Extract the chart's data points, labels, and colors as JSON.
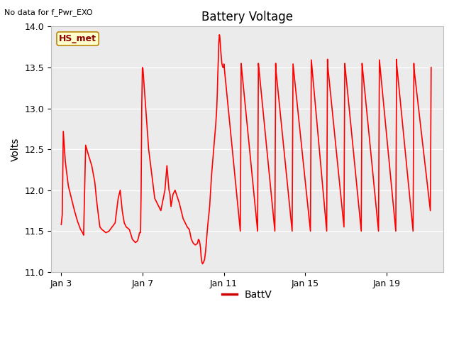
{
  "title": "Battery Voltage",
  "subtitle": "No data for f_Pwr_EXO",
  "ylabel": "Volts",
  "ylim": [
    11.0,
    14.0
  ],
  "yticks": [
    11.0,
    11.5,
    12.0,
    12.5,
    13.0,
    13.5,
    14.0
  ],
  "xtick_labels": [
    "Jan 3",
    "Jan 7",
    "Jan 11",
    "Jan 15",
    "Jan 19"
  ],
  "xtick_positions": [
    0,
    4,
    8,
    12,
    16
  ],
  "xlim": [
    -0.5,
    18.8
  ],
  "line_color": "#FF0000",
  "line_width": 1.2,
  "bg_axes": "#EBEBEB",
  "grid_color": "#FFFFFF",
  "fig_bg": "#FFFFFF",
  "legend_label": "BattV",
  "legend_line_color": "#CC0000",
  "annotation_label": "HS_met",
  "annot_box_fc": "#FFFFCC",
  "annot_box_ec": "#B8860B",
  "annot_text_color": "#8B0000"
}
